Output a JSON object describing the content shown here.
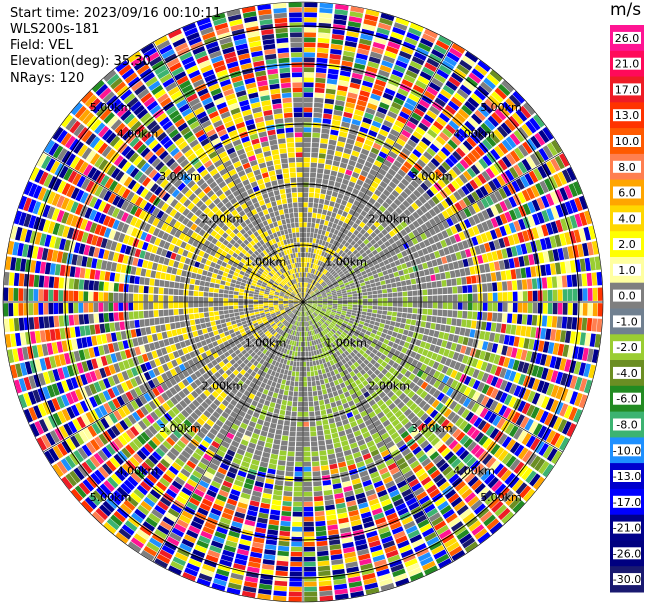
{
  "header": {
    "start_time": "Start time: 2023/09/16 00:10:11",
    "site": "WLS200s-181",
    "field": "Field: VEL",
    "elevation": "Elevation(deg): 35.30",
    "nrays": "NRays: 120"
  },
  "colorbar": {
    "units": "m/s",
    "ticks": [
      "26.0",
      "21.0",
      "17.0",
      "13.0",
      "10.0",
      "8.0",
      "6.0",
      "4.0",
      "2.0",
      "1.0",
      "0.0",
      "-1.0",
      "-2.0",
      "-4.0",
      "-6.0",
      "-8.0",
      "-10.0",
      "-13.0",
      "-17.0",
      "-21.0",
      "-26.0",
      "-30.0"
    ],
    "colors": [
      "#ff1493",
      "#ff0a5a",
      "#ee1c25",
      "#ff3300",
      "#ff5a00",
      "#ff7f50",
      "#ffa500",
      "#ffd700",
      "#ffff00",
      "#ffffa0",
      "#7f7f7f",
      "#708090",
      "#9acd32",
      "#6b8e23",
      "#228b22",
      "#3cb371",
      "#1e90ff",
      "#0000cd",
      "#0000ff",
      "#00008b",
      "#000080",
      "#191970"
    ]
  },
  "chart_data": {
    "type": "ppi",
    "field": "VEL",
    "n_rays": 120,
    "range_rings_km": [
      "1.00km",
      "2.00km",
      "3.00km",
      "4.00km",
      "5.00km",
      "6.00km"
    ],
    "max_range_km": 6.9
  }
}
